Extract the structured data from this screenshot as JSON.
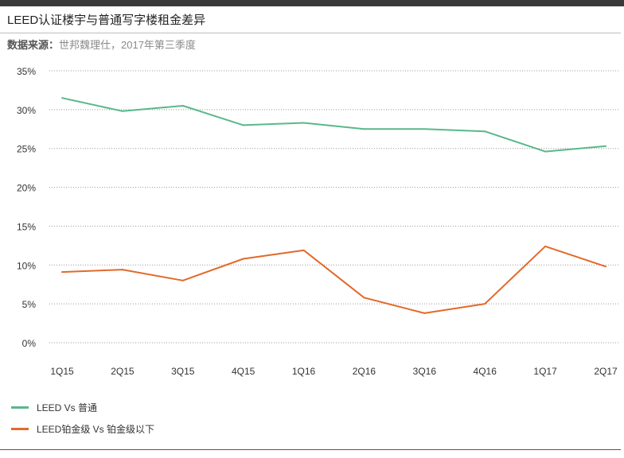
{
  "header": {
    "title": "LEED认证楼宇与普通写字楼租金差异",
    "source_label": "数据来源：",
    "source_value": "世邦魏理仕，2017年第三季度"
  },
  "chart_data": {
    "type": "line",
    "title": "LEED认证楼宇与普通写字楼租金差异",
    "xlabel": "",
    "ylabel": "",
    "categories": [
      "1Q15",
      "2Q15",
      "3Q15",
      "4Q15",
      "1Q16",
      "2Q16",
      "3Q16",
      "4Q16",
      "1Q17",
      "2Q17"
    ],
    "yticks": [
      "0%",
      "5%",
      "10%",
      "15%",
      "20%",
      "25%",
      "30%",
      "35%"
    ],
    "ylim": [
      0,
      35
    ],
    "grid": true,
    "legend_position": "bottom-left",
    "series": [
      {
        "name": "LEED Vs 普通",
        "color": "#5ab88a",
        "values": [
          31.5,
          29.8,
          30.5,
          28.0,
          28.3,
          27.5,
          27.5,
          27.2,
          24.6,
          25.3
        ]
      },
      {
        "name": "LEED铂金级 Vs 铂金级以下",
        "color": "#e3692a",
        "values": [
          9.1,
          9.4,
          8.0,
          10.8,
          11.9,
          5.8,
          3.8,
          5.0,
          12.4,
          9.8
        ]
      }
    ]
  }
}
